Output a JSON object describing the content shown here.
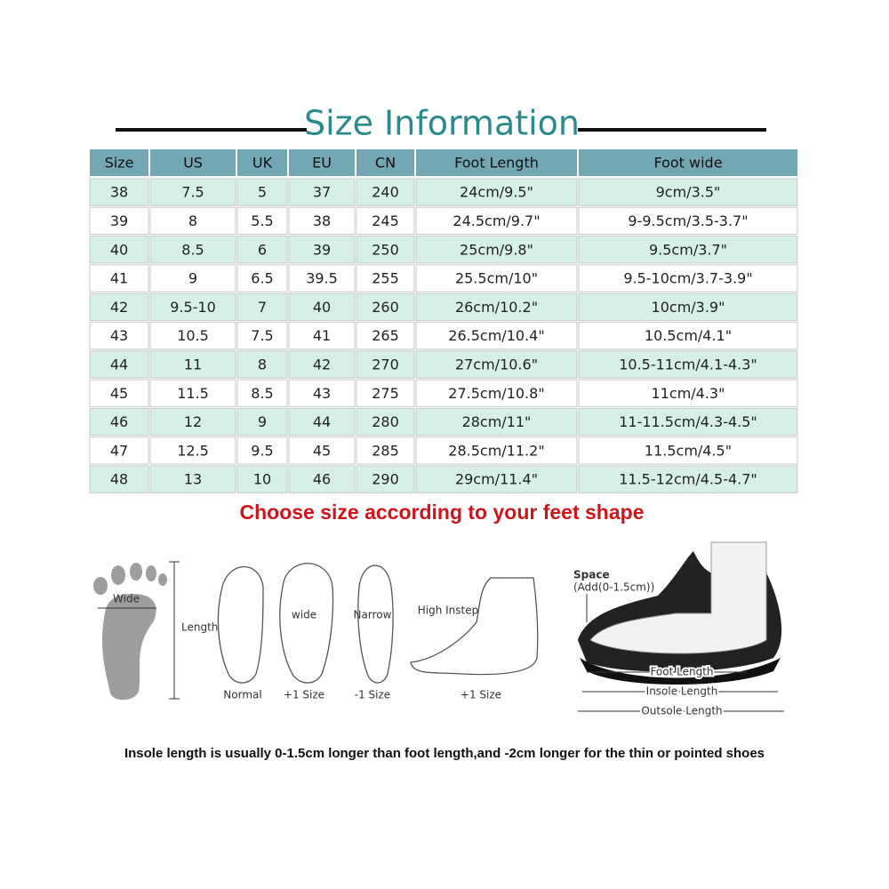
{
  "title": "Size Information",
  "table": {
    "header": [
      "Size",
      "US",
      "UK",
      "EU",
      "CN",
      "Foot Length",
      "Foot wide"
    ],
    "rows": [
      [
        "38",
        "7.5",
        "5",
        "37",
        "240",
        "24cm/9.5\"",
        "9cm/3.5\""
      ],
      [
        "39",
        "8",
        "5.5",
        "38",
        "245",
        "24.5cm/9.7\"",
        "9-9.5cm/3.5-3.7\""
      ],
      [
        "40",
        "8.5",
        "6",
        "39",
        "250",
        "25cm/9.8\"",
        "9.5cm/3.7\""
      ],
      [
        "41",
        "9",
        "6.5",
        "39.5",
        "255",
        "25.5cm/10\"",
        "9.5-10cm/3.7-3.9\""
      ],
      [
        "42",
        "9.5-10",
        "7",
        "40",
        "260",
        "26cm/10.2\"",
        "10cm/3.9\""
      ],
      [
        "43",
        "10.5",
        "7.5",
        "41",
        "265",
        "26.5cm/10.4\"",
        "10.5cm/4.1\""
      ],
      [
        "44",
        "11",
        "8",
        "42",
        "270",
        "27cm/10.6\"",
        "10.5-11cm/4.1-4.3\""
      ],
      [
        "45",
        "11.5",
        "8.5",
        "43",
        "275",
        "27.5cm/10.8\"",
        "11cm/4.3\""
      ],
      [
        "46",
        "12",
        "9",
        "44",
        "280",
        "28cm/11\"",
        "11-11.5cm/4.3-4.5\""
      ],
      [
        "47",
        "12.5",
        "9.5",
        "45",
        "285",
        "28.5cm/11.2\"",
        "11.5cm/4.5\""
      ],
      [
        "48",
        "13",
        "10",
        "46",
        "290",
        "29cm/11.4\"",
        "11.5-12cm/4.5-4.7\""
      ]
    ]
  },
  "subtitle": "Choose size according to your feet shape",
  "diagram": {
    "wide": "Wide",
    "length": "Length",
    "wide_foot": "wide",
    "narrow_foot": "Narrow",
    "high_instep": "High Instep",
    "normal": "Normal",
    "wide_size": "+1 Size",
    "narrow_size": "-1 Size",
    "instep_size": "+1 Size",
    "space": "Space",
    "space_add": "(Add(0-1.5cm))",
    "foot_length": "Foot Length",
    "insole_length": "Insole Length",
    "outsole_length": "Outsole Length"
  },
  "footnote": "Insole length is usually 0-1.5cm longer than foot length,and -2cm longer for the thin or pointed shoes"
}
